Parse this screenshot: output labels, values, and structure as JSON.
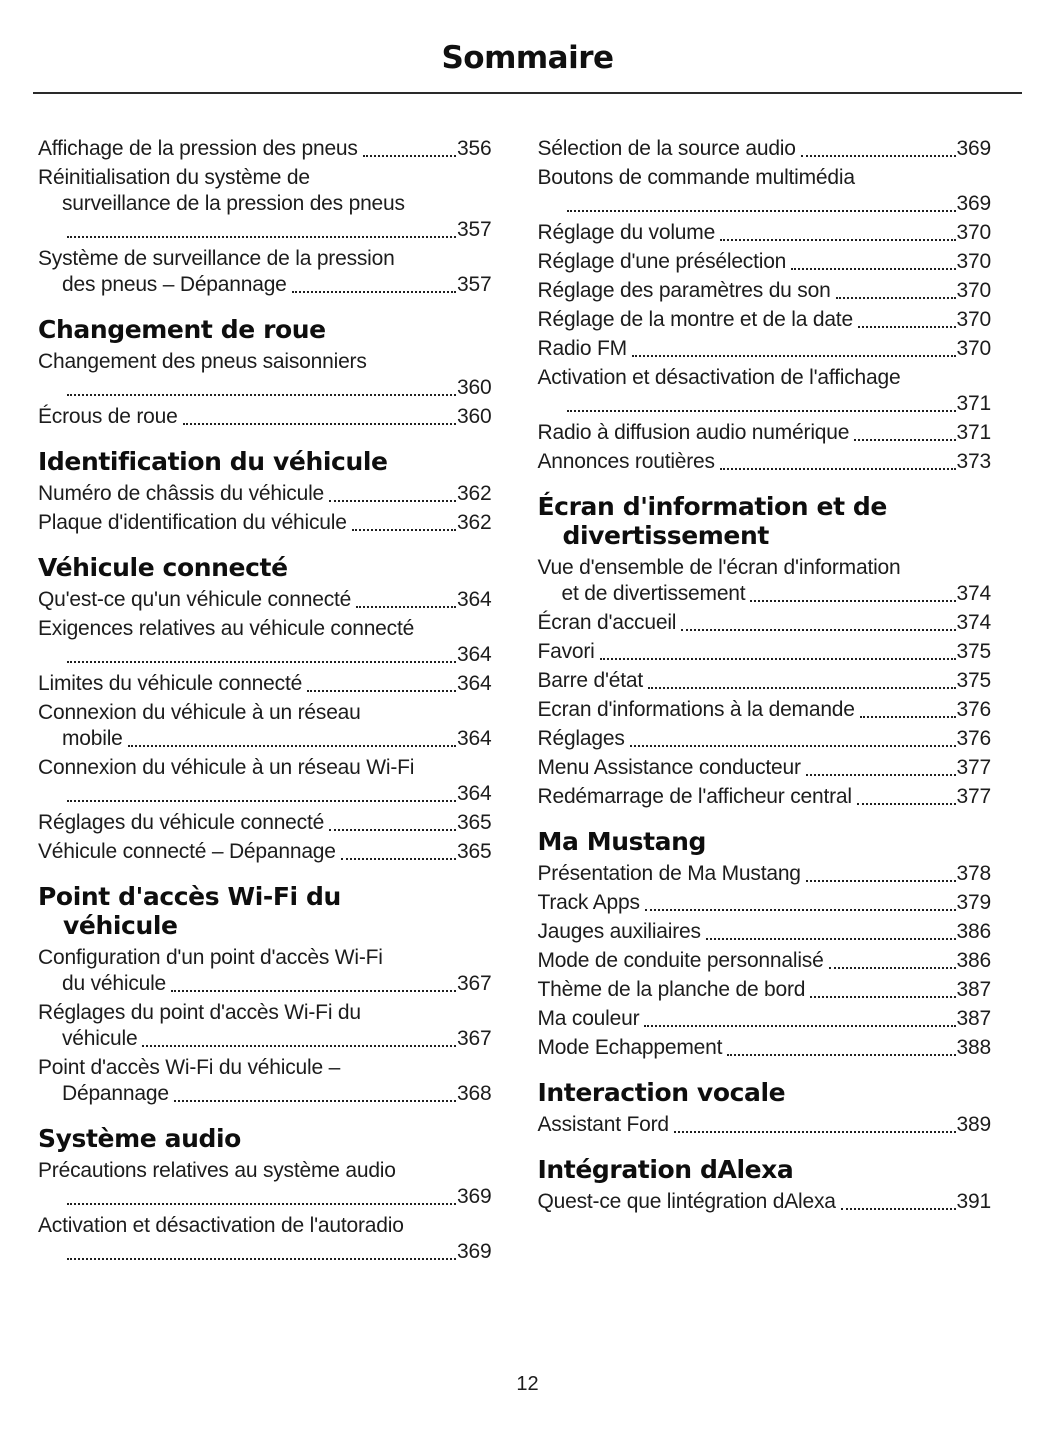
{
  "page": {
    "title": "Sommaire",
    "page_number": "12",
    "text_color": "#1c1c1c"
  },
  "columns": [
    {
      "sections": [
        {
          "heading": [],
          "entries": [
            {
              "lines": [
                "Affichage de la pression des pneus"
              ],
              "page": "356"
            },
            {
              "lines": [
                "Réinitialisation du système de",
                "surveillance de la pression des pneus",
                ""
              ],
              "page": "357"
            },
            {
              "lines": [
                "Système de surveillance de la pression",
                "des pneus – Dépannage"
              ],
              "page": "357"
            }
          ]
        },
        {
          "heading": [
            "Changement de roue"
          ],
          "entries": [
            {
              "lines": [
                "Changement des pneus saisonniers",
                ""
              ],
              "page": "360"
            },
            {
              "lines": [
                "Écrous de roue"
              ],
              "page": "360"
            }
          ]
        },
        {
          "heading": [
            "Identification du véhicule"
          ],
          "entries": [
            {
              "lines": [
                "Numéro de châssis du véhicule"
              ],
              "page": "362"
            },
            {
              "lines": [
                "Plaque d'identification du véhicule"
              ],
              "page": "362"
            }
          ]
        },
        {
          "heading": [
            "Véhicule connecté"
          ],
          "entries": [
            {
              "lines": [
                "Qu'est-ce qu'un véhicule connecté"
              ],
              "page": "364"
            },
            {
              "lines": [
                "Exigences relatives au véhicule connecté",
                ""
              ],
              "page": "364"
            },
            {
              "lines": [
                "Limites du véhicule connecté"
              ],
              "page": "364"
            },
            {
              "lines": [
                "Connexion du véhicule à un réseau",
                "mobile"
              ],
              "page": "364"
            },
            {
              "lines": [
                "Connexion du véhicule à un réseau Wi-Fi",
                ""
              ],
              "page": "364"
            },
            {
              "lines": [
                "Réglages du véhicule connecté"
              ],
              "page": "365"
            },
            {
              "lines": [
                "Véhicule connecté – Dépannage"
              ],
              "page": "365"
            }
          ]
        },
        {
          "heading": [
            "Point d'accès Wi-Fi du",
            "véhicule"
          ],
          "entries": [
            {
              "lines": [
                "Configuration d'un point d'accès Wi-Fi",
                "du véhicule"
              ],
              "page": "367"
            },
            {
              "lines": [
                "Réglages du point d'accès Wi-Fi du",
                "véhicule"
              ],
              "page": "367"
            },
            {
              "lines": [
                "Point d'accès Wi-Fi du véhicule –",
                "Dépannage"
              ],
              "page": "368"
            }
          ]
        },
        {
          "heading": [
            "Système audio"
          ],
          "entries": [
            {
              "lines": [
                "Précautions relatives au système audio",
                ""
              ],
              "page": "369"
            },
            {
              "lines": [
                "Activation et désactivation de l'autoradio",
                ""
              ],
              "page": "369"
            }
          ]
        }
      ]
    },
    {
      "sections": [
        {
          "heading": [],
          "entries": [
            {
              "lines": [
                "Sélection de la source audio"
              ],
              "page": "369"
            },
            {
              "lines": [
                "Boutons de commande multimédia",
                ""
              ],
              "page": "369"
            },
            {
              "lines": [
                "Réglage du volume"
              ],
              "page": "370"
            },
            {
              "lines": [
                "Réglage d'une présélection"
              ],
              "page": "370"
            },
            {
              "lines": [
                "Réglage des paramètres du son"
              ],
              "page": "370"
            },
            {
              "lines": [
                "Réglage de la montre et de la date"
              ],
              "page": "370"
            },
            {
              "lines": [
                "Radio FM"
              ],
              "page": "370"
            },
            {
              "lines": [
                "Activation et désactivation de l'affichage",
                ""
              ],
              "page": "371"
            },
            {
              "lines": [
                "Radio à diffusion audio numérique"
              ],
              "page": "371"
            },
            {
              "lines": [
                "Annonces routières"
              ],
              "page": "373"
            }
          ]
        },
        {
          "heading": [
            "Écran d'information et de",
            "divertissement"
          ],
          "entries": [
            {
              "lines": [
                "Vue d'ensemble de l'écran d'information",
                "et de divertissement"
              ],
              "page": "374"
            },
            {
              "lines": [
                "Écran d'accueil"
              ],
              "page": "374"
            },
            {
              "lines": [
                "Favori"
              ],
              "page": "375"
            },
            {
              "lines": [
                "Barre d'état"
              ],
              "page": "375"
            },
            {
              "lines": [
                "Ecran d'informations à la demande"
              ],
              "page": "376"
            },
            {
              "lines": [
                "Réglages"
              ],
              "page": "376"
            },
            {
              "lines": [
                "Menu Assistance conducteur"
              ],
              "page": "377"
            },
            {
              "lines": [
                "Redémarrage de l'afficheur central"
              ],
              "page": "377"
            }
          ]
        },
        {
          "heading": [
            "Ma Mustang"
          ],
          "entries": [
            {
              "lines": [
                "Présentation de Ma Mustang"
              ],
              "page": "378"
            },
            {
              "lines": [
                "Track Apps"
              ],
              "page": "379"
            },
            {
              "lines": [
                "Jauges auxiliaires"
              ],
              "page": "386"
            },
            {
              "lines": [
                "Mode de conduite personnalisé"
              ],
              "page": "386"
            },
            {
              "lines": [
                "Thème de la planche de bord"
              ],
              "page": "387"
            },
            {
              "lines": [
                "Ma couleur"
              ],
              "page": "387"
            },
            {
              "lines": [
                "Mode Echappement"
              ],
              "page": "388"
            }
          ]
        },
        {
          "heading": [
            "Interaction vocale"
          ],
          "entries": [
            {
              "lines": [
                "Assistant Ford"
              ],
              "page": "389"
            }
          ]
        },
        {
          "heading": [
            "Intégration dAlexa"
          ],
          "entries": [
            {
              "lines": [
                "Quest-ce que lintégration dAlexa"
              ],
              "page": "391"
            }
          ]
        }
      ]
    }
  ]
}
